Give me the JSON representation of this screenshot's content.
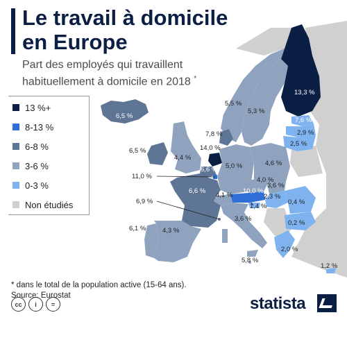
{
  "header": {
    "title": "Le travail à domicile en Europe",
    "subtitle": "Part des employés qui travaillent habituellement à domicile en 2018",
    "subtitle_mark": "*"
  },
  "legend": {
    "items": [
      {
        "label": "13 %+",
        "color": "#0b1f44"
      },
      {
        "label": "8-13 %",
        "color": "#2f6fd6"
      },
      {
        "label": "6-8 %",
        "color": "#5f7596"
      },
      {
        "label": "3-6 %",
        "color": "#8fa3bf"
      },
      {
        "label": "0-3 %",
        "color": "#7fb3f0"
      },
      {
        "label": "Non étudiés",
        "color": "#d0d0d0"
      }
    ]
  },
  "countries": {
    "finland": "13,3 %",
    "iceland": "6,5 %",
    "sweden": "5,5 %",
    "norway": "5,3 %",
    "estonia": "7,6 %",
    "latvia": "2,9 %",
    "lithuania": "2,5 %",
    "denmark": "7,8 %",
    "ireland": "6,5 %",
    "uk": "4,4 %",
    "netherlands": "14,0 %",
    "belgium": "6,6 %",
    "luxembourg": "11,0 %",
    "germany": "5,0 %",
    "poland": "4,6 %",
    "france": "6,6 %",
    "switzerland": "4,1 %",
    "austria": "10,0 %",
    "czechia": "4,0 %",
    "slovakia": "3,6 %",
    "hungary": "2,3 %",
    "slovenia": "1,4 %",
    "monaco": "6,9 %",
    "romania": "0,4 %",
    "bulgaria": "0,2 %",
    "portugal": "6,1 %",
    "spain": "4,3 %",
    "italy": "3,6 %",
    "greece": "2,0 %",
    "malta": "5,8 %",
    "cyprus": "1,2 %"
  },
  "footer": {
    "note": "* dans le total de la population active (15-64 ans).",
    "source": "Source: Eurostat",
    "brand": "statista",
    "cc_labels": [
      "cc",
      "i",
      "="
    ]
  },
  "colors": {
    "background_land": "#d0d0d0",
    "text_dark": "#0b1f44"
  }
}
